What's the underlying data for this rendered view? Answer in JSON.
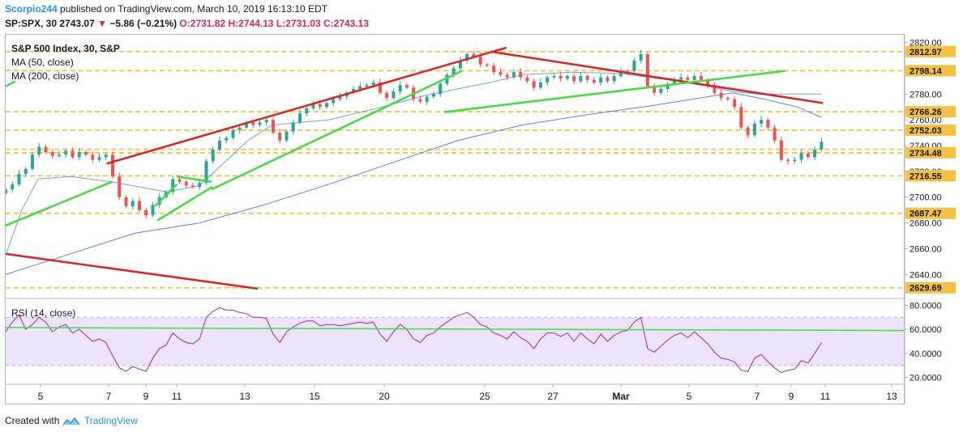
{
  "header": {
    "author": "Scorpio244",
    "published": "published on TradingView.com, March 10, 2019 16:13:10 EDT",
    "symbol": "SP:SPX, 30",
    "last": "2743.07",
    "change": "−5.86 (−0.21%)",
    "o_label": "O:",
    "o": "2731.82",
    "h_label": "H:",
    "h": "2744.13",
    "l_label": "L:",
    "l": "2731.03",
    "c_label": "C:",
    "c": "2743.13"
  },
  "legend": {
    "title": "S&P 500 Index, 30, S&P",
    "ma50": "MA (50, close)",
    "ma200": "MA (200, close)",
    "rsi": "RSI (14, close)"
  },
  "footer": {
    "created": "Created with",
    "brand": "TradingView"
  },
  "colors": {
    "up": "#26a69a",
    "down": "#ef5350",
    "ma50": "#4a8fd4",
    "ma200": "#2962ff",
    "trend_red": "#e0201c",
    "trend_green": "#3ce03c",
    "level": "#f5c142",
    "rsi_line": "#9c27b0",
    "rsi_band": "#ede3fb"
  },
  "chart_data": [
    {
      "type": "candlestick",
      "ylim": [
        2622,
        2826
      ],
      "y_ticks": [
        "2820.00",
        "2800.00",
        "2780.00",
        "2760.00",
        "2740.00",
        "2720.00",
        "2700.00",
        "2680.00",
        "2660.00",
        "2640.00"
      ],
      "x_ticks": [
        "5",
        "7",
        "9",
        "11",
        "13",
        "15",
        "20",
        "25",
        "27",
        "Mar",
        "5",
        "7",
        "9",
        "11",
        "13"
      ],
      "level_labels": [
        "2812.97",
        "2798.14",
        "2766.26",
        "2752.03",
        "2734.48",
        "2716.55",
        "2687.47",
        "2629.69"
      ],
      "levels": [
        2812.97,
        2798.14,
        2766.26,
        2752.03,
        2737.2,
        2734.48,
        2716.55,
        2687.47,
        2629.69
      ],
      "closes": [
        2706,
        2710,
        2718,
        2722,
        2733,
        2739,
        2735,
        2732,
        2733,
        2736,
        2731,
        2735,
        2733,
        2729,
        2731,
        2733,
        2716,
        2700,
        2693,
        2697,
        2690,
        2686,
        2694,
        2700,
        2704,
        2714,
        2712,
        2709,
        2708,
        2711,
        2728,
        2737,
        2744,
        2746,
        2752,
        2754,
        2758,
        2756,
        2758,
        2760,
        2750,
        2744,
        2751,
        2758,
        2765,
        2769,
        2772,
        2770,
        2773,
        2776,
        2778,
        2781,
        2784,
        2786,
        2787,
        2789,
        2781,
        2777,
        2782,
        2787,
        2785,
        2776,
        2774,
        2778,
        2780,
        2788,
        2795,
        2800,
        2806,
        2811,
        2809,
        2803,
        2802,
        2797,
        2795,
        2793,
        2797,
        2793,
        2790,
        2785,
        2789,
        2793,
        2794,
        2792,
        2794,
        2790,
        2794,
        2791,
        2789,
        2793,
        2790,
        2794,
        2797,
        2798,
        2806,
        2811,
        2786,
        2781,
        2784,
        2788,
        2791,
        2793,
        2791,
        2794,
        2791,
        2787,
        2781,
        2777,
        2776,
        2770,
        2754,
        2748,
        2757,
        2760,
        2754,
        2744,
        2729,
        2728,
        2729,
        2734,
        2731,
        2737,
        2743
      ],
      "ma50": [
        [
          0,
          2655
        ],
        [
          20,
          2690
        ],
        [
          40,
          2714
        ],
        [
          80,
          2716
        ],
        [
          130,
          2712
        ],
        [
          200,
          2704
        ],
        [
          240,
          2709
        ],
        [
          300,
          2744
        ],
        [
          330,
          2756
        ],
        [
          400,
          2760
        ],
        [
          460,
          2769
        ],
        [
          520,
          2779
        ],
        [
          600,
          2789
        ],
        [
          640,
          2795
        ],
        [
          700,
          2797
        ],
        [
          760,
          2796
        ],
        [
          820,
          2791
        ],
        [
          870,
          2786
        ],
        [
          900,
          2782
        ],
        [
          930,
          2780
        ],
        [
          1010,
          2780
        ]
      ],
      "ma200": [
        [
          0,
          2640
        ],
        [
          80,
          2656
        ],
        [
          160,
          2672
        ],
        [
          240,
          2680
        ],
        [
          320,
          2694
        ],
        [
          400,
          2710
        ],
        [
          480,
          2727
        ],
        [
          560,
          2744
        ],
        [
          640,
          2756
        ],
        [
          720,
          2764
        ],
        [
          800,
          2771
        ],
        [
          860,
          2777
        ],
        [
          900,
          2781
        ],
        [
          940,
          2776
        ],
        [
          980,
          2770
        ],
        [
          1010,
          2762
        ]
      ],
      "trend_red": [
        [
          [
            125,
            2726
          ],
          [
            620,
            2816
          ]
        ],
        [
          [
            600,
            2813
          ],
          [
            1012,
            2773
          ]
        ],
        [
          [
            0,
            2656
          ],
          [
            312,
            2629
          ]
        ]
      ],
      "trend_green": [
        [
          [
            0,
            2678
          ],
          [
            132,
            2712
          ]
        ],
        [
          [
            188,
            2682
          ],
          [
            256,
            2708
          ]
        ],
        [
          [
            255,
            2706
          ],
          [
            565,
            2798
          ]
        ],
        [
          [
            185,
            2693
          ],
          [
            212,
            2710
          ]
        ],
        [
          [
            212,
            2716
          ],
          [
            255,
            2712
          ]
        ],
        [
          [
            543,
            2766
          ],
          [
            965,
            2798
          ]
        ],
        [
          [
            0,
            2786
          ],
          [
            12,
            2790
          ]
        ]
      ]
    },
    {
      "type": "line",
      "title": "RSI (14, close)",
      "ylim": [
        15,
        85
      ],
      "y_ticks": [
        "80.0000",
        "60.0000",
        "40.0000",
        "20.0000"
      ],
      "band": [
        30,
        70
      ],
      "values": [
        58,
        66,
        72,
        60,
        64,
        70,
        66,
        58,
        62,
        64,
        57,
        60,
        55,
        50,
        52,
        49,
        38,
        28,
        25,
        29,
        27,
        25,
        36,
        44,
        47,
        57,
        52,
        49,
        48,
        52,
        70,
        75,
        78,
        76,
        76,
        74,
        73,
        70,
        70,
        69,
        56,
        49,
        58,
        62,
        65,
        67,
        67,
        63,
        64,
        64,
        63,
        64,
        65,
        66,
        65,
        66,
        56,
        50,
        58,
        64,
        60,
        52,
        49,
        55,
        57,
        62,
        66,
        70,
        72,
        74,
        70,
        64,
        62,
        57,
        55,
        52,
        58,
        53,
        50,
        44,
        52,
        57,
        57,
        54,
        57,
        50,
        57,
        52,
        48,
        56,
        50,
        55,
        58,
        59,
        66,
        70,
        44,
        41,
        46,
        51,
        55,
        57,
        53,
        58,
        53,
        48,
        41,
        36,
        35,
        33,
        26,
        25,
        36,
        39,
        33,
        28,
        24,
        26,
        27,
        34,
        32,
        40,
        49
      ],
      "trend_green": [
        [
          [
            0,
            61.5
          ],
          [
            1112,
            59
          ]
        ]
      ]
    }
  ]
}
